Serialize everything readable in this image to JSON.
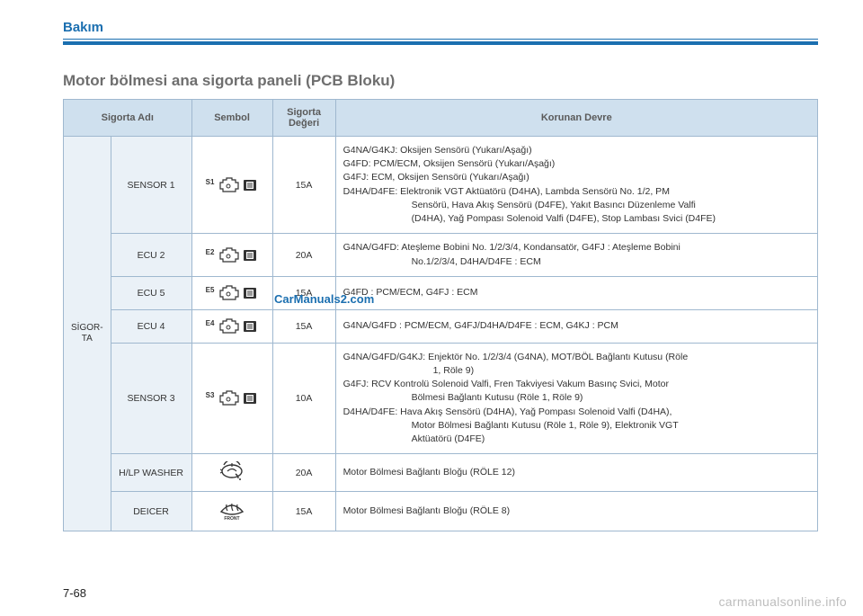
{
  "section_label": "Bakım",
  "title": "Motor bölmesi ana sigorta paneli (PCB Bloku)",
  "headers": {
    "name": "Sigorta Adı",
    "symbol": "Sembol",
    "rating": "Sigorta Değeri",
    "circuit": "Korunan Devre"
  },
  "group_label": "SİGOR-TA",
  "rows": [
    {
      "name": "SENSOR 1",
      "sup": "S1",
      "symbol_type": "engine-fuse",
      "rating": "15A",
      "desc_html": "G4NA/G4KJ: Oksijen Sensörü (Yukarı/Aşağı)<br>G4FD: PCM/ECM, Oksijen Sensörü (Yukarı/Aşağı)<br>G4FJ: ECM, Oksijen Sensörü (Yukarı/Aşağı)<br>D4HA/D4FE: Elektronik VGT Aktüatörü (D4HA), Lambda Sensörü No. 1/2, PM<span class=\"indent\">Sensörü, Hava Akış Sensörü (D4FE), Yakıt Basıncı Düzenleme Valfi</span><span class=\"indent\">(D4HA), Yağ Pompası Solenoid Valfi (D4FE), Stop Lambası Svici (D4FE)</span>"
    },
    {
      "name": "ECU 2",
      "sup": "E2",
      "symbol_type": "engine-fuse",
      "rating": "20A",
      "desc_html": "G4NA/G4FD: Ateşleme Bobini No. 1/2/3/4, Kondansatör, G4FJ : Ateşleme Bobini<span class=\"indent\">No.1/2/3/4, D4HA/D4FE : ECM</span>"
    },
    {
      "name": "ECU 5",
      "sup": "E5",
      "symbol_type": "engine-fuse",
      "rating": "15A",
      "desc_html": "G4FD : PCM/ECM, G4FJ : ECM"
    },
    {
      "name": "ECU 4",
      "sup": "E4",
      "symbol_type": "engine-fuse",
      "rating": "15A",
      "desc_html": "G4NA/G4FD : PCM/ECM, G4FJ/D4HA/D4FE : ECM, G4KJ : PCM"
    },
    {
      "name": "SENSOR 3",
      "sup": "S3",
      "symbol_type": "engine-fuse",
      "rating": "10A",
      "desc_html": "G4NA/G4FD/G4KJ: Enjektör No. 1/2/3/4 (G4NA), MOT/BÖL Bağlantı Kutusu (Röle<span class=\"indent2\">1, Röle 9)</span>G4FJ: RCV Kontrolü Solenoid Valfi, Fren Takviyesi Vakum Basınç Svici, Motor<span class=\"indent\">Bölmesi Bağlantı Kutusu (Röle 1, Röle 9)</span>D4HA/D4FE: Hava Akış Sensörü (D4HA), Yağ Pompası Solenoid Valfi (D4HA),<span class=\"indent\">Motor Bölmesi Bağlantı Kutusu (Röle 1, Röle 9), Elektronik VGT</span><span class=\"indent\">Aktüatörü (D4FE)</span>"
    },
    {
      "name": "H/LP WASHER",
      "sup": "",
      "symbol_type": "washer",
      "rating": "20A",
      "desc_html": "Motor Bölmesi Bağlantı Bloğu (RÖLE 12)"
    },
    {
      "name": "DEICER",
      "sup": "",
      "symbol_type": "deicer",
      "rating": "15A",
      "desc_html": "Motor Bölmesi Bağlantı Bloğu (RÖLE 8)"
    }
  ],
  "watermark": "CarManuals2.com",
  "page_num": "7-68",
  "footer_brand": "carmanualsonline.info",
  "colors": {
    "brand_blue": "#1b6fb0",
    "header_bg": "#cfe0ee",
    "cell_bg": "#eaf1f7",
    "border": "#9fb8cf",
    "title_gray": "#6e6e6e",
    "footer_gray": "#bdbdbd"
  }
}
